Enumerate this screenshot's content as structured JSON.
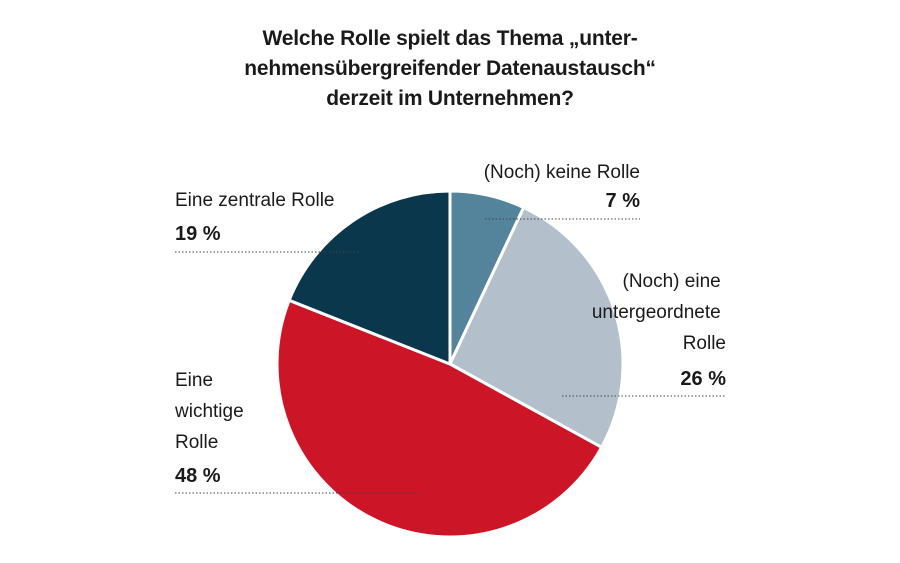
{
  "chart_data": {
    "type": "pie",
    "title_lines": [
      "Welche Rolle spielt das Thema „unter-",
      "nehmensübergreifender Datenaustausch“",
      "derzeit im Unternehmen?"
    ],
    "slices": [
      {
        "label": "(Noch) keine Rolle",
        "value": 7,
        "value_label": "7 %",
        "color": "#54849b"
      },
      {
        "label": "(Noch) eine untergeordnete Rolle",
        "value": 26,
        "value_label": "26 %",
        "color": "#b3c0cc"
      },
      {
        "label": "Eine wichtige Rolle",
        "value": 48,
        "value_label": "48 %",
        "color": "#cc1526"
      },
      {
        "label": "Eine zentrale Rolle",
        "value": 19,
        "value_label": "19 %",
        "color": "#0b374c"
      }
    ],
    "start_angle_deg": 0,
    "direction": "clockwise"
  }
}
